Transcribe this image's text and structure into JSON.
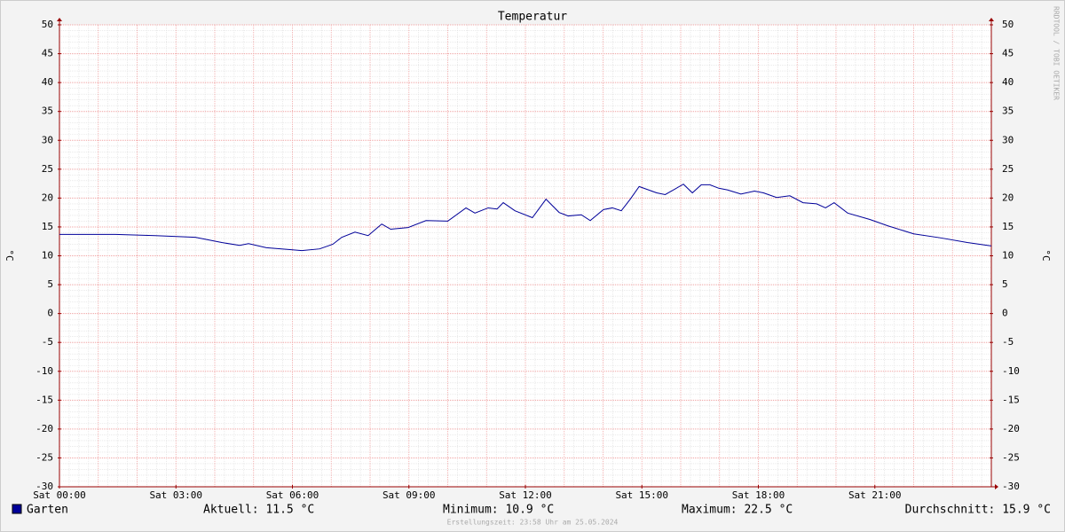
{
  "chart_data": {
    "type": "line",
    "title": "Temperatur",
    "ylabel": "°C",
    "watermark": "RRDTOOL / TOBI OETIKER",
    "xlim": [
      0,
      24
    ],
    "xticks": [
      {
        "value": 0,
        "label": "Sat 00:00"
      },
      {
        "value": 3,
        "label": "Sat 03:00"
      },
      {
        "value": 6,
        "label": "Sat 06:00"
      },
      {
        "value": 9,
        "label": "Sat 09:00"
      },
      {
        "value": 12,
        "label": "Sat 12:00"
      },
      {
        "value": 15,
        "label": "Sat 15:00"
      },
      {
        "value": 18,
        "label": "Sat 18:00"
      },
      {
        "value": 21,
        "label": "Sat 21:00"
      }
    ],
    "ylim": [
      -30,
      50
    ],
    "yticks": [
      -30,
      -25,
      -20,
      -15,
      -10,
      -5,
      0,
      5,
      10,
      15,
      20,
      25,
      30,
      35,
      40,
      45,
      50
    ],
    "grid": true,
    "x": [
      0,
      1.44,
      2.47,
      3.5,
      4.18,
      4.64,
      4.87,
      5.33,
      5.9,
      6.24,
      6.7,
      7.04,
      7.27,
      7.61,
      7.95,
      8.3,
      8.53,
      8.98,
      9.44,
      10.0,
      10.47,
      10.7,
      11.04,
      11.27,
      11.43,
      11.73,
      12.18,
      12.53,
      12.87,
      13.1,
      13.44,
      13.67,
      14.01,
      14.24,
      14.47,
      14.7,
      14.93,
      15.38,
      15.6,
      16.07,
      16.3,
      16.53,
      16.75,
      16.98,
      17.21,
      17.55,
      17.9,
      18.13,
      18.47,
      18.81,
      19.15,
      19.5,
      19.73,
      19.95,
      20.3,
      20.87,
      21.33,
      22.0,
      22.7,
      23.38,
      24.0
    ],
    "series": [
      {
        "name": "Garten",
        "color": "#000099",
        "values": [
          13.7,
          13.7,
          13.5,
          13.2,
          12.3,
          11.8,
          12.1,
          11.4,
          11.1,
          10.9,
          11.2,
          12.0,
          13.2,
          14.1,
          13.5,
          15.5,
          14.6,
          14.9,
          16.1,
          16.0,
          18.3,
          17.4,
          18.3,
          18.1,
          19.2,
          17.8,
          16.6,
          19.8,
          17.5,
          16.9,
          17.1,
          16.1,
          18.0,
          18.3,
          17.8,
          19.8,
          22.0,
          20.9,
          20.6,
          22.4,
          20.9,
          22.3,
          22.3,
          21.7,
          21.4,
          20.7,
          21.2,
          20.9,
          20.1,
          20.4,
          19.2,
          19.0,
          18.3,
          19.2,
          17.4,
          16.3,
          15.2,
          13.8,
          13.1,
          12.3,
          11.7
        ]
      }
    ],
    "stats": [
      "Aktuell: 11.5 °C",
      "Minimum: 10.9 °C",
      "Maximum: 22.5 °C",
      "Durchschnitt: 15.9 °C"
    ],
    "footer": "Erstellungszeit: 23:58 Uhr am 25.05.2024"
  }
}
